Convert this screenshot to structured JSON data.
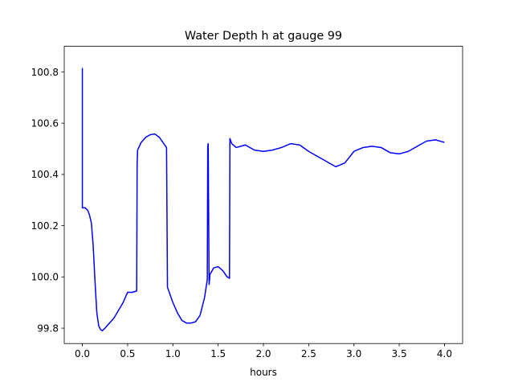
{
  "chart_data": {
    "type": "line",
    "title": "Water Depth h at gauge 99",
    "xlabel": "hours",
    "ylabel": "",
    "xlim": [
      -0.2,
      4.2
    ],
    "ylim": [
      99.74,
      100.9
    ],
    "xticks": [
      0.0,
      0.5,
      1.0,
      1.5,
      2.0,
      2.5,
      3.0,
      3.5,
      4.0
    ],
    "xtick_labels": [
      "0.0",
      "0.5",
      "1.0",
      "1.5",
      "2.0",
      "2.5",
      "3.0",
      "3.5",
      "4.0"
    ],
    "yticks": [
      99.8,
      100.0,
      100.2,
      100.4,
      100.6,
      100.8
    ],
    "ytick_labels": [
      "99.8",
      "100.0",
      "100.2",
      "100.4",
      "100.6",
      "100.8"
    ],
    "grid": false,
    "series": [
      {
        "color": "#0000ff",
        "x": [
          0.0,
          0.0,
          0.0,
          0.03,
          0.06,
          0.08,
          0.1,
          0.12,
          0.14,
          0.16,
          0.18,
          0.2,
          0.22,
          0.25,
          0.3,
          0.35,
          0.4,
          0.45,
          0.5,
          0.55,
          0.6,
          0.605,
          0.61,
          0.65,
          0.7,
          0.75,
          0.8,
          0.85,
          0.9,
          0.93,
          0.94,
          0.945,
          0.96,
          1.0,
          1.05,
          1.1,
          1.15,
          1.2,
          1.25,
          1.3,
          1.35,
          1.38,
          1.385,
          1.39,
          1.4,
          1.41,
          1.45,
          1.5,
          1.55,
          1.6,
          1.625,
          1.63,
          1.635,
          1.65,
          1.7,
          1.75,
          1.8,
          1.85,
          1.9,
          2.0,
          2.1,
          2.2,
          2.3,
          2.4,
          2.5,
          2.6,
          2.7,
          2.8,
          2.9,
          3.0,
          3.1,
          3.2,
          3.3,
          3.4,
          3.5,
          3.6,
          3.7,
          3.8,
          3.9,
          4.0
        ],
        "y": [
          100.815,
          100.275,
          100.27,
          100.27,
          100.26,
          100.24,
          100.21,
          100.12,
          99.98,
          99.86,
          99.81,
          99.795,
          99.79,
          99.8,
          99.82,
          99.84,
          99.87,
          99.9,
          99.94,
          99.94,
          99.945,
          100.44,
          100.495,
          100.525,
          100.545,
          100.555,
          100.558,
          100.545,
          100.52,
          100.505,
          99.96,
          99.955,
          99.94,
          99.9,
          99.86,
          99.83,
          99.82,
          99.82,
          99.825,
          99.85,
          99.92,
          99.99,
          100.51,
          100.52,
          99.97,
          100.01,
          100.035,
          100.04,
          100.025,
          100.0,
          99.995,
          100.54,
          100.535,
          100.52,
          100.505,
          100.51,
          100.515,
          100.505,
          100.495,
          100.49,
          100.495,
          100.505,
          100.52,
          100.515,
          100.49,
          100.47,
          100.45,
          100.43,
          100.445,
          100.49,
          100.505,
          100.51,
          100.505,
          100.485,
          100.48,
          100.49,
          100.51,
          100.53,
          100.535,
          100.525
        ]
      }
    ]
  }
}
